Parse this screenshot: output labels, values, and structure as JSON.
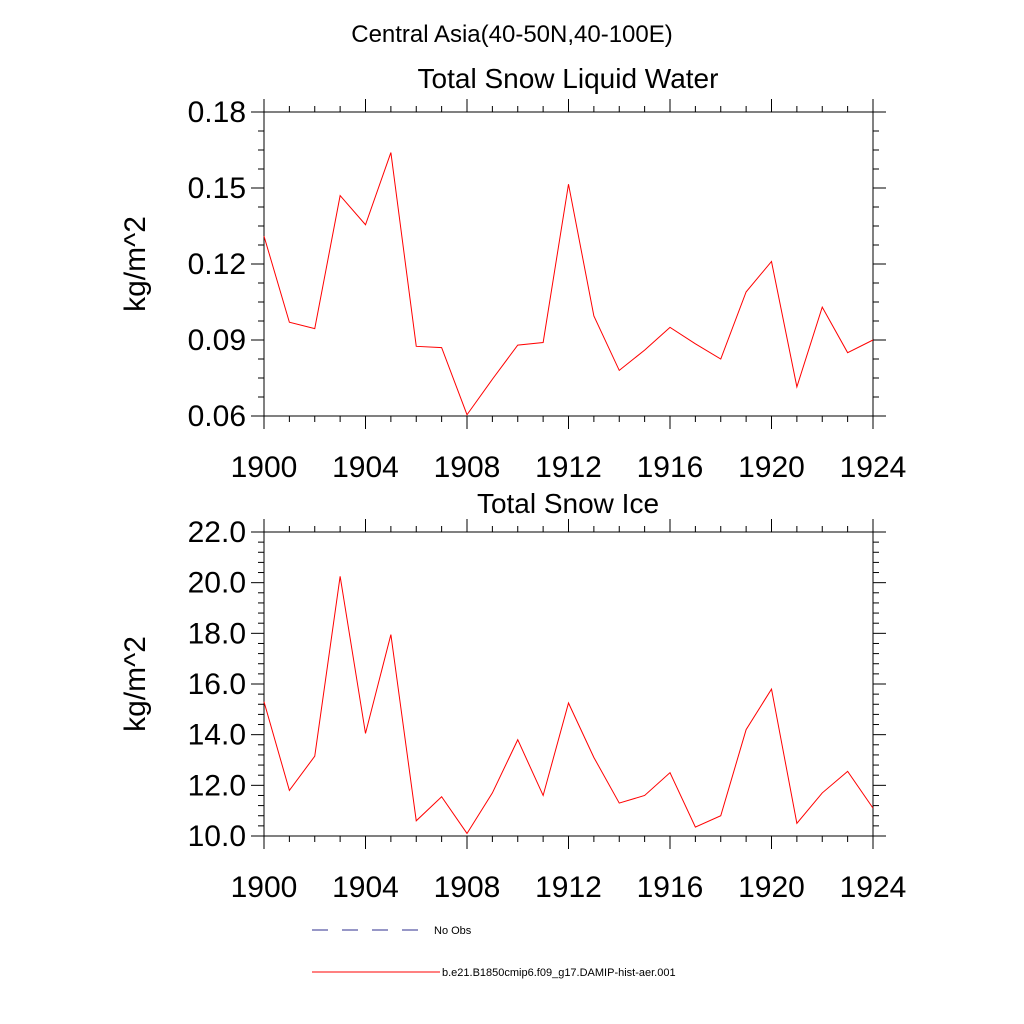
{
  "figure_title": "Central Asia(40-50N,40-100E)",
  "legend": {
    "entries": [
      {
        "label": "No Obs",
        "color": "#2f2f8f",
        "dash": "dashed"
      },
      {
        "label": "b.e21.B1850cmip6.f09_g17.DAMIP-hist-aer.001",
        "color": "#ff0000",
        "dash": "solid"
      }
    ]
  },
  "chart_data": [
    {
      "type": "line",
      "title": "Total Snow Liquid Water",
      "xlabel": "",
      "ylabel": "kg/m^2",
      "xlim": [
        1900,
        1924
      ],
      "ylim": [
        0.06,
        0.18
      ],
      "xticks": [
        "1900",
        "1904",
        "1908",
        "1912",
        "1916",
        "1920",
        "1924"
      ],
      "yticks": [
        "0.06",
        "0.09",
        "0.12",
        "0.15",
        "0.18"
      ],
      "x": [
        1900,
        1901,
        1902,
        1903,
        1904,
        1905,
        1906,
        1907,
        1908,
        1909,
        1910,
        1911,
        1912,
        1913,
        1914,
        1915,
        1916,
        1917,
        1918,
        1919,
        1920,
        1921,
        1922,
        1923,
        1924
      ],
      "series": [
        {
          "name": "b.e21.B1850cmip6.f09_g17.DAMIP-hist-aer.001",
          "color": "#ff0000",
          "values": [
            0.131,
            0.097,
            0.0945,
            0.147,
            0.1355,
            0.164,
            0.0875,
            0.087,
            0.0605,
            0.0745,
            0.088,
            0.089,
            0.1515,
            0.0995,
            0.078,
            0.086,
            0.095,
            0.0885,
            0.0825,
            0.109,
            0.121,
            0.0715,
            0.103,
            0.085,
            0.09
          ]
        }
      ],
      "grid": false
    },
    {
      "type": "line",
      "title": "Total Snow Ice",
      "xlabel": "",
      "ylabel": "kg/m^2",
      "xlim": [
        1900,
        1924
      ],
      "ylim": [
        10.0,
        22.0
      ],
      "xticks": [
        "1900",
        "1904",
        "1908",
        "1912",
        "1916",
        "1920",
        "1924"
      ],
      "yticks": [
        "10.0",
        "12.0",
        "14.0",
        "16.0",
        "18.0",
        "20.0",
        "22.0"
      ],
      "x": [
        1900,
        1901,
        1902,
        1903,
        1904,
        1905,
        1906,
        1907,
        1908,
        1909,
        1910,
        1911,
        1912,
        1913,
        1914,
        1915,
        1916,
        1917,
        1918,
        1919,
        1920,
        1921,
        1922,
        1923,
        1924
      ],
      "series": [
        {
          "name": "b.e21.B1850cmip6.f09_g17.DAMIP-hist-aer.001",
          "color": "#ff0000",
          "values": [
            15.3,
            11.8,
            13.15,
            20.25,
            14.05,
            17.95,
            10.6,
            11.55,
            10.1,
            11.7,
            13.8,
            11.6,
            15.25,
            13.1,
            11.3,
            11.6,
            12.5,
            10.35,
            10.8,
            14.2,
            15.8,
            10.5,
            11.7,
            12.55,
            11.1
          ]
        }
      ],
      "grid": false
    }
  ]
}
